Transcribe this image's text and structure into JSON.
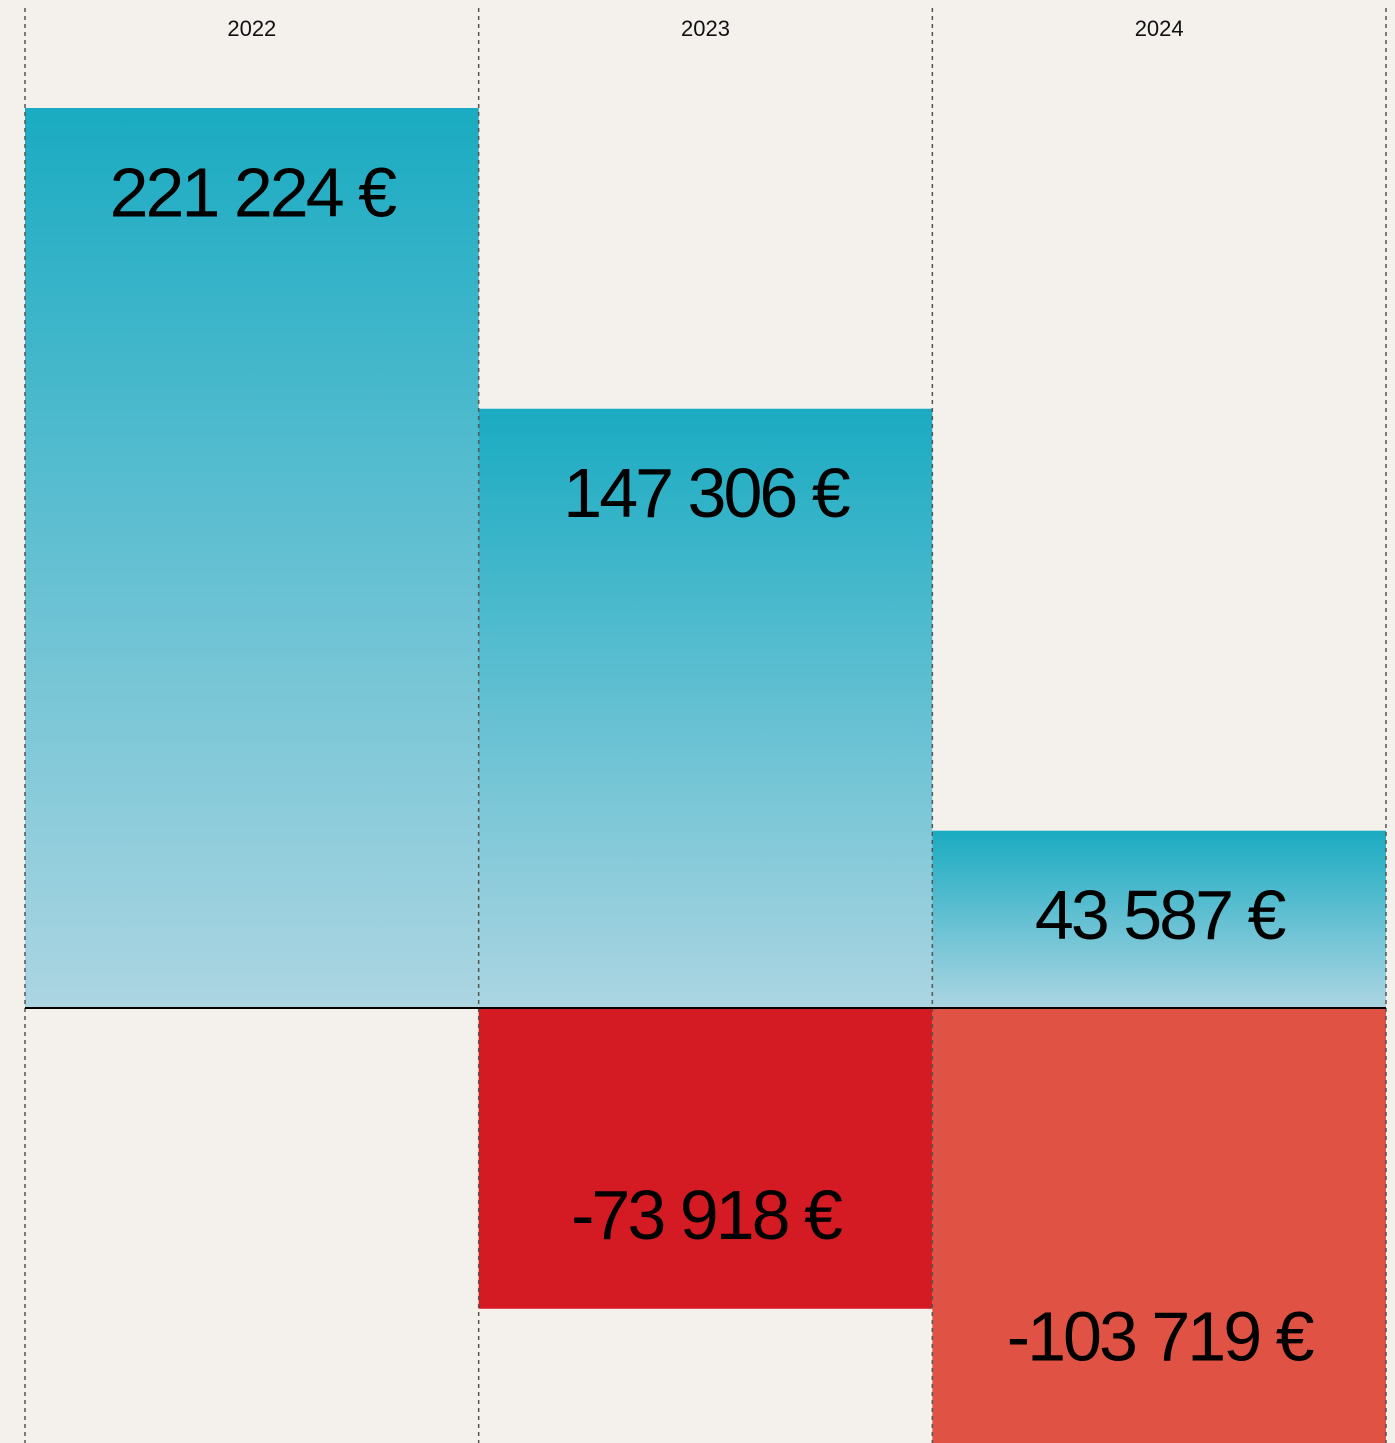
{
  "chart_data": {
    "type": "bar",
    "categories": [
      "2022",
      "2023",
      "2024"
    ],
    "series": [
      {
        "color": "#1aabc2",
        "values": [
          221224,
          147306,
          43587
        ],
        "value_labels": [
          "221 224 €",
          "147 306 €",
          "43 587 €"
        ]
      },
      {
        "colors": [
          null,
          "#d41a22",
          "#e05244"
        ],
        "values": [
          null,
          -73918,
          -103719
        ],
        "value_labels": [
          null,
          "-73 918 €",
          "-103 719 €"
        ]
      }
    ]
  }
}
